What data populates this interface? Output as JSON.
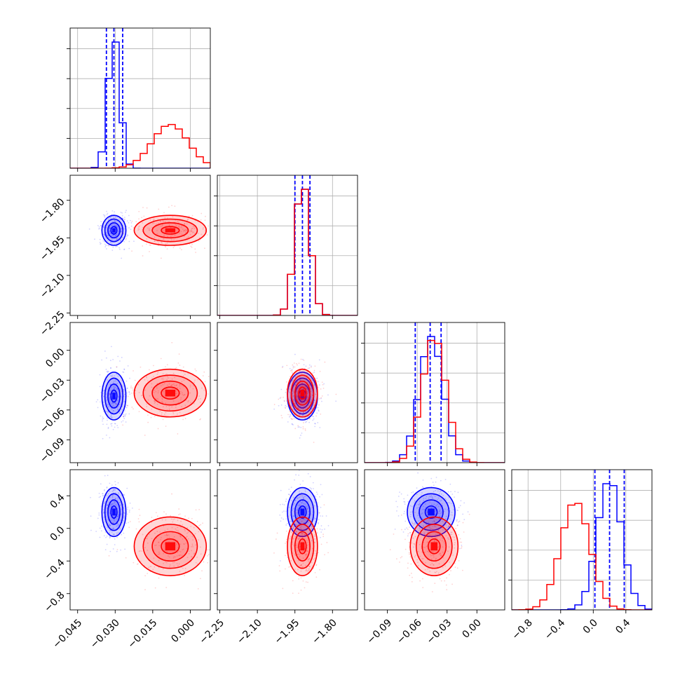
{
  "chart_data": {
    "type": "corner",
    "title": "",
    "params": [
      {
        "range": [
          -0.048,
          0.008
        ],
        "ticks": [
          -0.045,
          -0.03,
          -0.015,
          0.0
        ],
        "tick_labels": [
          "−0.045",
          "−0.030",
          "−0.015",
          "0.000"
        ]
      },
      {
        "range": [
          -2.26,
          -1.7
        ],
        "ticks": [
          -2.25,
          -2.1,
          -1.95,
          -1.8
        ],
        "tick_labels": [
          "−2.25",
          "−2.10",
          "−1.95",
          "−1.80"
        ]
      },
      {
        "range": [
          -0.113,
          0.028
        ],
        "ticks": [
          -0.09,
          -0.06,
          -0.03,
          0.0
        ],
        "tick_labels": [
          "−0.09",
          "−0.06",
          "−0.03",
          "0.00"
        ]
      },
      {
        "range": [
          -1.0,
          0.72
        ],
        "ticks": [
          -0.8,
          -0.4,
          0.0,
          0.4
        ],
        "tick_labels": [
          "−0.8",
          "−0.4",
          "0.0",
          "0.4"
        ]
      }
    ],
    "series": [
      {
        "color": "#0000ff",
        "means": [
          -0.0305,
          -1.92,
          -0.046,
          0.2
        ],
        "sigmas": [
          0.0024,
          0.03,
          0.012,
          0.15
        ],
        "quantiles": [
          [
            -0.0335,
            -0.0305,
            -0.027
          ],
          [
            -1.95,
            -1.92,
            -1.89
          ],
          [
            -0.062,
            -0.047,
            -0.036
          ],
          [
            0.02,
            0.2,
            0.38
          ]
        ]
      },
      {
        "color": "#ff0000",
        "means": [
          -0.008,
          -1.92,
          -0.043,
          -0.22
        ],
        "sigmas": [
          0.0072,
          0.03,
          0.012,
          0.18
        ],
        "quantiles": null
      }
    ],
    "contour_levels": [
      0.5,
      1.0,
      1.5,
      2.0
    ],
    "grid": true
  }
}
